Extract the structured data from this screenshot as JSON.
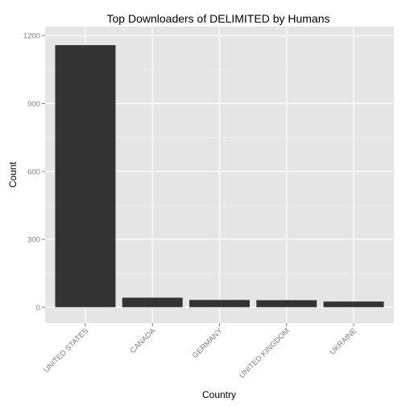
{
  "chart_data": {
    "type": "bar",
    "title": "Top Downloaders of DELIMITED by Humans",
    "xlabel": "Country",
    "ylabel": "Count",
    "categories": [
      "UNITED STATES",
      "CANADA",
      "GERMANY",
      "UNITED KINGDOM",
      "UKRAINE"
    ],
    "values": [
      1158,
      42,
      32,
      31,
      25
    ],
    "ylim": [
      -70,
      1240
    ],
    "yticks": [
      0,
      300,
      600,
      900,
      1200
    ],
    "grid": true,
    "legend": "none"
  },
  "colors": {
    "panel_background": "#e5e5e5",
    "grid_major": "#ffffff",
    "grid_minor": "#f2f2f2",
    "bar_fill": "#333333",
    "tick_text": "#7f7f7f"
  }
}
